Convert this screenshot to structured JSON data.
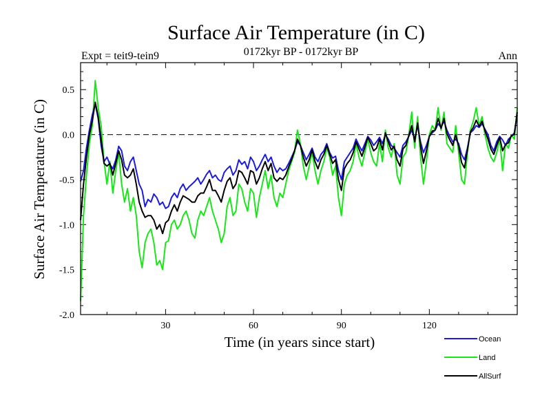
{
  "chart_data": {
    "type": "line",
    "title": "Surface Air Temperature (in C)",
    "subtitle_left": "Expt = teit9-tein9",
    "subtitle_center": "0172kyr BP - 0172kyr BP",
    "subtitle_right": "Ann",
    "xlabel": "Time (in years since start)",
    "ylabel": "Surface Air Temperature (in C)",
    "xlim": [
      1,
      150
    ],
    "ylim": [
      -2.0,
      0.8
    ],
    "xticks": [
      30,
      60,
      90,
      120
    ],
    "xtick_labels": [
      "30",
      "60",
      "90",
      "120"
    ],
    "yticks": [
      -2.0,
      -1.5,
      -1.0,
      -0.5,
      0.0,
      0.5
    ],
    "ytick_labels": [
      "-2.0",
      "-1.5",
      "-1.0",
      "-0.5",
      "0.0",
      "0.5"
    ],
    "reference_line": 0.0,
    "colors": {
      "Ocean": "#1a1adc",
      "Land": "#19e619",
      "AllSurf": "#000000"
    },
    "series": [
      {
        "name": "Ocean",
        "color": "#1a1adc",
        "values": [
          -0.52,
          -0.4,
          -0.15,
          0.05,
          0.22,
          0.34,
          0.18,
          -0.12,
          -0.3,
          -0.25,
          -0.33,
          -0.38,
          -0.28,
          -0.13,
          -0.18,
          -0.35,
          -0.4,
          -0.3,
          -0.25,
          -0.4,
          -0.55,
          -0.62,
          -0.8,
          -0.72,
          -0.75,
          -0.66,
          -0.7,
          -0.78,
          -0.75,
          -0.82,
          -0.8,
          -0.7,
          -0.65,
          -0.7,
          -0.6,
          -0.55,
          -0.62,
          -0.58,
          -0.55,
          -0.52,
          -0.48,
          -0.55,
          -0.5,
          -0.44,
          -0.4,
          -0.48,
          -0.45,
          -0.5,
          -0.52,
          -0.42,
          -0.38,
          -0.35,
          -0.45,
          -0.4,
          -0.28,
          -0.33,
          -0.3,
          -0.38,
          -0.25,
          -0.3,
          -0.4,
          -0.35,
          -0.28,
          -0.22,
          -0.3,
          -0.25,
          -0.35,
          -0.42,
          -0.37,
          -0.4,
          -0.38,
          -0.32,
          -0.25,
          -0.18,
          -0.08,
          -0.12,
          -0.2,
          -0.28,
          -0.22,
          -0.15,
          -0.25,
          -0.3,
          -0.22,
          -0.18,
          -0.1,
          -0.2,
          -0.26,
          -0.24,
          -0.4,
          -0.5,
          -0.3,
          -0.25,
          -0.2,
          -0.15,
          -0.05,
          -0.12,
          -0.18,
          -0.1,
          -0.02,
          -0.06,
          -0.12,
          -0.08,
          -0.03,
          -0.1,
          0.0,
          -0.05,
          -0.12,
          -0.15,
          -0.2,
          -0.25,
          -0.12,
          -0.08,
          -0.02,
          0.05,
          -0.05,
          0.1,
          -0.08,
          -0.2,
          -0.12,
          -0.02,
          0.02,
          0.05,
          0.12,
          0.08,
          0.15,
          0.05,
          -0.02,
          -0.08,
          -0.05,
          -0.1,
          -0.22,
          -0.28,
          -0.15,
          0.02,
          0.05,
          0.1,
          0.08,
          0.12,
          0.06,
          0.0,
          -0.12,
          -0.18,
          -0.08,
          -0.02,
          -0.06,
          -0.12,
          -0.05,
          -0.02,
          0.02,
          0.22
        ]
      },
      {
        "name": "Land",
        "color": "#19e619",
        "values": [
          -1.85,
          -0.9,
          -0.45,
          -0.1,
          0.1,
          0.6,
          0.3,
          0.1,
          -0.3,
          -0.55,
          -0.3,
          -0.65,
          -0.4,
          -0.2,
          -0.55,
          -0.75,
          -0.6,
          -0.85,
          -0.7,
          -0.9,
          -1.3,
          -1.48,
          -1.2,
          -1.1,
          -1.05,
          -1.2,
          -1.45,
          -1.4,
          -1.5,
          -1.2,
          -1.18,
          -1.0,
          -0.95,
          -1.05,
          -1.0,
          -0.9,
          -0.85,
          -0.95,
          -1.1,
          -1.15,
          -0.95,
          -0.85,
          -0.9,
          -0.8,
          -0.7,
          -0.85,
          -0.95,
          -1.05,
          -1.2,
          -1.1,
          -0.8,
          -0.7,
          -0.9,
          -0.85,
          -0.55,
          -0.6,
          -0.75,
          -0.85,
          -0.6,
          -0.65,
          -0.92,
          -0.7,
          -0.55,
          -0.4,
          -0.6,
          -0.45,
          -0.7,
          -0.8,
          -0.65,
          -0.7,
          -0.55,
          -0.4,
          -0.3,
          -0.2,
          0.05,
          -0.1,
          -0.35,
          -0.5,
          -0.35,
          -0.2,
          -0.4,
          -0.55,
          -0.4,
          -0.3,
          -0.15,
          -0.25,
          -0.45,
          -0.35,
          -0.7,
          -0.9,
          -0.55,
          -0.45,
          -0.4,
          -0.3,
          -0.1,
          -0.25,
          -0.35,
          -0.2,
          -0.05,
          -0.2,
          -0.3,
          -0.35,
          -0.1,
          -0.3,
          0.05,
          -0.15,
          -0.25,
          -0.1,
          -0.45,
          -0.55,
          -0.25,
          -0.2,
          0.0,
          0.25,
          -0.15,
          0.2,
          -0.25,
          -0.55,
          -0.3,
          0.0,
          0.1,
          0.05,
          0.3,
          0.05,
          0.25,
          -0.1,
          -0.15,
          -0.2,
          0.1,
          -0.2,
          -0.5,
          -0.55,
          -0.2,
          0.05,
          0.15,
          0.3,
          0.1,
          0.2,
          0.0,
          -0.15,
          -0.25,
          -0.3,
          -0.2,
          -0.05,
          -0.4,
          -0.1,
          -0.15,
          0.0,
          -0.05,
          0.3
        ]
      },
      {
        "name": "AllSurf",
        "color": "#000000",
        "values": [
          -0.95,
          -0.55,
          -0.25,
          0.0,
          0.15,
          0.36,
          0.2,
          -0.05,
          -0.32,
          -0.35,
          -0.32,
          -0.45,
          -0.32,
          -0.18,
          -0.28,
          -0.45,
          -0.48,
          -0.45,
          -0.38,
          -0.55,
          -0.75,
          -0.85,
          -0.92,
          -0.9,
          -0.9,
          -0.95,
          -1.05,
          -1.0,
          -1.1,
          -0.98,
          -0.95,
          -0.85,
          -0.78,
          -0.85,
          -0.75,
          -0.68,
          -0.7,
          -0.72,
          -0.75,
          -0.75,
          -0.68,
          -0.65,
          -0.65,
          -0.58,
          -0.5,
          -0.62,
          -0.62,
          -0.68,
          -0.75,
          -0.62,
          -0.52,
          -0.48,
          -0.6,
          -0.55,
          -0.4,
          -0.42,
          -0.48,
          -0.55,
          -0.4,
          -0.42,
          -0.55,
          -0.48,
          -0.38,
          -0.3,
          -0.4,
          -0.32,
          -0.48,
          -0.52,
          -0.48,
          -0.5,
          -0.45,
          -0.36,
          -0.28,
          -0.18,
          -0.05,
          -0.12,
          -0.25,
          -0.35,
          -0.28,
          -0.17,
          -0.3,
          -0.38,
          -0.28,
          -0.22,
          -0.12,
          -0.22,
          -0.32,
          -0.28,
          -0.5,
          -0.62,
          -0.38,
          -0.32,
          -0.28,
          -0.2,
          -0.08,
          -0.16,
          -0.24,
          -0.14,
          -0.03,
          -0.1,
          -0.18,
          -0.15,
          -0.05,
          -0.17,
          0.02,
          -0.08,
          -0.17,
          -0.13,
          -0.28,
          -0.35,
          -0.16,
          -0.12,
          -0.01,
          0.1,
          -0.08,
          0.13,
          -0.13,
          -0.32,
          -0.18,
          -0.02,
          0.04,
          0.05,
          0.18,
          0.07,
          0.18,
          0.01,
          -0.06,
          -0.12,
          0.0,
          -0.13,
          -0.31,
          -0.37,
          -0.17,
          0.03,
          0.08,
          0.16,
          0.09,
          0.15,
          0.04,
          -0.05,
          -0.16,
          -0.22,
          -0.12,
          -0.03,
          -0.18,
          -0.11,
          -0.09,
          -0.01,
          0.0,
          0.25
        ]
      }
    ],
    "legend_position": "bottom-right"
  }
}
